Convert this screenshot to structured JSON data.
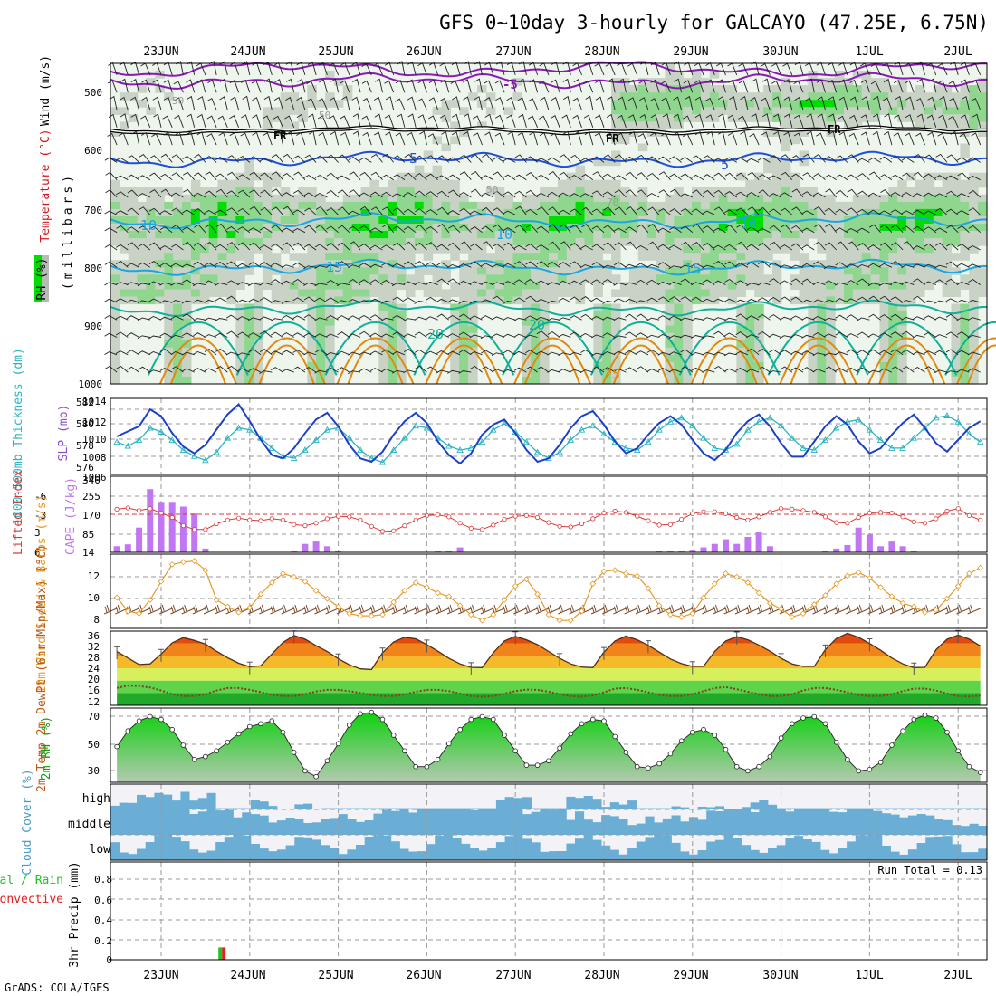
{
  "title": "GFS 0~10day 3-hourly for GALCAYO (47.25E, 6.75N)",
  "credit": "GrADS: COLA/IGES",
  "dates": [
    "23JUN",
    "24JUN",
    "25JUN",
    "26JUN",
    "27JUN",
    "28JUN",
    "29JUN",
    "30JUN",
    "1JUL",
    "2JUL"
  ],
  "colors": {
    "rh_light": "#eef5ec",
    "rh_mid": "#c8d3c6",
    "rh_high": "#8fd68f",
    "rh_sat": "#00dd00",
    "temp_purple": "#8a1ab8",
    "temp_black": "#000000",
    "temp_blue": "#1d4fd8",
    "temp_cyan": "#1aa6e0",
    "temp_teal": "#10b09a",
    "temp_orange": "#e08a10",
    "temp_red": "#d2161c",
    "thickness": "#2bb4c0",
    "slp": "#1c3fc8",
    "li": "#d83a3a",
    "cape": "#c277f2",
    "wind10": "#e79a28",
    "barb": "#7b4a2a",
    "cloud": "#6aaed6",
    "cloud_bg": "#f3f2f7",
    "rh2m": "#0fd00f",
    "precip_total": "#22c422",
    "precip_conv": "#e02020"
  },
  "chart_data": [
    {
      "type": "heatmap",
      "name": "upper_air",
      "ylabel": "(millibars)",
      "yticks": [
        "500",
        "600",
        "700",
        "800",
        "900",
        "1000"
      ],
      "ylim": [
        450,
        1000
      ],
      "legend_labels": {
        "wind": "Wind (m/s)",
        "temperature": "Temperature (°C)",
        "rh": "RH (%)"
      },
      "contour_labels": [
        "-5",
        "FR",
        "FR",
        "FR",
        "5",
        "5",
        "10",
        "10",
        "10",
        "15",
        "15",
        "20",
        "20",
        "25",
        "50",
        "50",
        "50",
        "70"
      ],
      "isotherms": [
        {
          "label": "-5",
          "level": 480,
          "color": "temp_purple"
        },
        {
          "label": "FR",
          "level": 565,
          "color": "temp_black"
        },
        {
          "label": "5",
          "level": 615,
          "color": "temp_blue"
        },
        {
          "label": "10",
          "level": 720,
          "color": "temp_cyan"
        },
        {
          "label": "15",
          "level": 800,
          "color": "temp_cyan"
        },
        {
          "label": "20",
          "level": 870,
          "color": "temp_teal"
        }
      ]
    },
    {
      "type": "line",
      "name": "thickness_slp",
      "left_label": "1000-500mb Thickness (dm)",
      "right_label": "SLP (mb)",
      "left_ticks": [
        "582",
        "580",
        "578",
        "576"
      ],
      "right_ticks": [
        "1014",
        "1012",
        "1010",
        "1008",
        "1006"
      ],
      "left_ylim": [
        575,
        582.5
      ],
      "right_ylim": [
        1005.5,
        1014.5
      ],
      "series": [
        {
          "name": "Thickness",
          "color": "thickness",
          "values": [
            581.6,
            582,
            581,
            579.6,
            578.2,
            577.8,
            578.4,
            579.6,
            579.2,
            578.4,
            577.4,
            576.8,
            576.4,
            577.2,
            578.6,
            579.6,
            579.4,
            578.6,
            577.6,
            576.8,
            576.6,
            577.4,
            578.4,
            579.4,
            579.6,
            578.6,
            577.4,
            576.6,
            576.2,
            577.4,
            578.6,
            579.8,
            579.6,
            578.6,
            577.8,
            577.4,
            577.6,
            578.2,
            579.4,
            580,
            579.2,
            578.2,
            577.2,
            576.6,
            577.2,
            578.4,
            579.4,
            579.8,
            579,
            578.2,
            577.6,
            577.4,
            578.2,
            579.4,
            580.2,
            580.6,
            579.8,
            578.6,
            577.6,
            577.4,
            578,
            579.4,
            580.2,
            580.6,
            579.8,
            578.6,
            577.6,
            577.4,
            578.4,
            579.6,
            580.2,
            580.4,
            579.4,
            578.4,
            577.6,
            577.6,
            578.6,
            579.6,
            580.6,
            580.8,
            580.2,
            579,
            578.2,
            578.6,
            579.6
          ]
        },
        {
          "name": "SLP",
          "color": "slp",
          "values": [
            1007,
            1006.4,
            1006.6,
            1008.4,
            1010,
            1010.6,
            1011.2,
            1013.2,
            1012.4,
            1010.4,
            1008.8,
            1008,
            1009,
            1010.8,
            1012.6,
            1013.8,
            1011.8,
            1009.6,
            1007.8,
            1007.4,
            1008.6,
            1010.4,
            1012,
            1012.8,
            1011.2,
            1009,
            1007.4,
            1007,
            1008.2,
            1010.2,
            1011.8,
            1012.8,
            1011.6,
            1009.4,
            1007.8,
            1006.8,
            1008,
            1010.2,
            1011.4,
            1012,
            1010.4,
            1008.4,
            1007,
            1007.4,
            1009,
            1011,
            1012.4,
            1013,
            1011.4,
            1009.4,
            1008,
            1008.6,
            1010.2,
            1011.6,
            1012.4,
            1011.4,
            1009.6,
            1008,
            1007.2,
            1008.4,
            1010.4,
            1011.8,
            1012.6,
            1011.2,
            1009.2,
            1007.6,
            1007.6,
            1009.4,
            1011.2,
            1012.4,
            1011.4,
            1009.4,
            1008,
            1008.6,
            1010.2,
            1011.6,
            1012.6,
            1011,
            1009.2,
            1008.2,
            1009.6,
            1011,
            1011.8,
            1011.6,
            1012
          ]
        }
      ]
    },
    {
      "type": "bar",
      "name": "li_cape",
      "left_label": "Lifted Index",
      "right_label": "CAPE (J/kg)",
      "left_ticks": [
        "-6",
        "-3",
        "0",
        "3",
        "6"
      ],
      "right_ticks": [
        "340",
        "255",
        "170",
        "85",
        "14"
      ],
      "left_ylim": [
        6,
        -6
      ],
      "right_ylim": [
        14,
        340
      ],
      "series": [
        {
          "name": "Lifted Index",
          "color": "li",
          "values": [
            2.6,
            3.1,
            2,
            0.4,
            -0.8,
            -1,
            -0.6,
            -0.9,
            -0.2,
            0.5,
            1.8,
            2.4,
            2.4,
            1.5,
            0.9,
            0.6,
            0.9,
            1,
            0.7,
            0.9,
            1.6,
            1.8,
            1.4,
            0.7,
            0.3,
            0.4,
            0.9,
            1.9,
            2.7,
            2.6,
            1.8,
            0.9,
            0.2,
            0.1,
            0.4,
            1.4,
            2.2,
            2.4,
            1.7,
            0.8,
            0.3,
            0.2,
            0.5,
            1.3,
            1.9,
            2,
            1.5,
            0.7,
            -0.2,
            -0.5,
            -0.3,
            0.3,
            1,
            1.7,
            1.6,
            0.8,
            -0.1,
            -0.4,
            -0.4,
            -0.1,
            0.5,
            0.9,
            0.4,
            -0.3,
            -0.9,
            -0.8,
            -0.6,
            -0.3,
            0.4,
            1.3,
            1.4,
            0.5,
            -0.2,
            -0.3,
            -0.2,
            0.4,
            1.2,
            1.4,
            0.7,
            -0.5,
            -0.9,
            0.2,
            0.9,
            1.2,
            1.3,
            0.7,
            0.1,
            1.2,
            2.1,
            2.7,
            2.2,
            1.5,
            0.9
          ]
        },
        {
          "name": "CAPE",
          "color": "cape",
          "values": [
            20,
            22,
            25,
            30,
            40,
            48,
            120,
            285,
            230,
            230,
            210,
            180,
            30,
            0,
            0,
            0,
            0,
            0,
            0,
            0,
            20,
            50,
            60,
            40,
            20,
            0,
            0,
            0,
            0,
            0,
            0,
            0,
            0,
            20,
            20,
            35,
            0,
            0,
            0,
            0,
            0,
            0,
            0,
            0,
            0,
            0,
            0,
            0,
            0,
            0,
            0,
            0,
            0,
            20,
            20,
            20,
            25,
            35,
            50,
            70,
            50,
            80,
            100,
            40,
            0,
            0,
            0,
            0,
            20,
            30,
            45,
            120,
            90,
            40,
            60,
            40,
            20,
            0,
            0,
            0,
            0,
            0,
            0,
            25,
            25,
            20,
            20,
            20,
            25,
            30,
            25,
            60,
            0,
            0,
            0,
            0
          ]
        }
      ]
    },
    {
      "type": "line",
      "name": "wind10m",
      "ylabel": "10m Wind Speed & Barbs (m/s)",
      "yticks": [
        "12",
        "10",
        "8"
      ],
      "ylim": [
        7.5,
        14
      ],
      "series": [
        {
          "name": "10m Wind Speed",
          "color": "wind10",
          "values": [
            10.8,
            9.5,
            10.5,
            10.9,
            10.2,
            9,
            8.8,
            10,
            11.6,
            13.1,
            13.3,
            13.4,
            12.6,
            10,
            9.4,
            8.9,
            9.3,
            10.5,
            11.5,
            12.3,
            12,
            11.6,
            10.8,
            10.1,
            9.4,
            8.8,
            8.6,
            8.6,
            8.7,
            9.8,
            10.8,
            11.5,
            11.1,
            10.6,
            10.3,
            9.5,
            8.7,
            8.2,
            8.7,
            10,
            11.2,
            11.8,
            10.5,
            8.7,
            8.2,
            8.2,
            9,
            11.4,
            12.5,
            12.6,
            12.3,
            12.1,
            11,
            9.5,
            8.7,
            8.5,
            8.8,
            10.2,
            11.4,
            12.3,
            12,
            11.5,
            10.6,
            9.7,
            9.2,
            8.5,
            8.8,
            9.6,
            10.4,
            11.4,
            12.1,
            12.4,
            11.9,
            11.1,
            10.3,
            9.7,
            9.4,
            8.9,
            9.1,
            10.1,
            11.2,
            12.3,
            12.8,
            12.4,
            11.5,
            10.6,
            9.8,
            8.8,
            9.3,
            10.6,
            11.6,
            12.4,
            12.1,
            11.2,
            10.3,
            9.6,
            8.9,
            9.4,
            10.2,
            10.8,
            11.9,
            12.3
          ]
        }
      ]
    },
    {
      "type": "area",
      "name": "temp2m",
      "ylabel": "2m Temp 2m DewPt (6hr Min/Max) (°C)",
      "yticks": [
        "36",
        "32",
        "28",
        "24",
        "20",
        "16",
        "12"
      ],
      "ylim": [
        12,
        36
      ],
      "series": [
        {
          "name": "2m Temp",
          "values": [
            35,
            34.6,
            33.2,
            31.6,
            29.4,
            27.3,
            25.2,
            25.4,
            28.6,
            32.2,
            33.9,
            33,
            31.8,
            29.5,
            27.4,
            25.6,
            24.5,
            24.8,
            28.6,
            32.3,
            34.6,
            33.4,
            31.3,
            29.4,
            27.1,
            25.1,
            23.8,
            23.6,
            29,
            32.5,
            34,
            33.5,
            31.6,
            29.5,
            27.2,
            25.4,
            24.3,
            24.2,
            29,
            32.8,
            34.3,
            33.2,
            31.6,
            29.4,
            27.2,
            25.4,
            24.4,
            24.2,
            29.2,
            32.8,
            34.4,
            33.2,
            31.4,
            29.2,
            27,
            25.5,
            24.6,
            24.6,
            29.4,
            32.8,
            34.2,
            33.2,
            31.5,
            29.5,
            27.2,
            25.4,
            24.6,
            24.6,
            30,
            33.6,
            35.3,
            34,
            32,
            29.8,
            27.3,
            25.4,
            24.2,
            24.3,
            30,
            33.4,
            34.7,
            33.4,
            31.2,
            29,
            26.8,
            25,
            24.4,
            24.6,
            29.8,
            33.2,
            33.4,
            32,
            30,
            28,
            26.2,
            24.7,
            24.3,
            28.2
          ]
        },
        {
          "name": "2m DewPt",
          "values": [
            13,
            12.8,
            14,
            15.8,
            17.6,
            18.4,
            18.2,
            17.8,
            16.8,
            15.6,
            15,
            15,
            15.6,
            16.8,
            17.6,
            17.6,
            17,
            16.3,
            15.4,
            15,
            15,
            15.6,
            16.5,
            17,
            17,
            16.6,
            16,
            15.4,
            15,
            15,
            15.6,
            16.4,
            17,
            17,
            16.6,
            15.8,
            15,
            14.8,
            15,
            15.8,
            16.6,
            17.1,
            17,
            16.4,
            15.6,
            15,
            14.8,
            15.2,
            16.2,
            17.4,
            17.6,
            17,
            16.2,
            15.4,
            15,
            15,
            15.6,
            16.6,
            17.6,
            17.9,
            17.2,
            16.4,
            15.6,
            15,
            15,
            15.6,
            16.8,
            17.6,
            17.6,
            17,
            16.2,
            15.4,
            15,
            15,
            15.6,
            16.6,
            17.4,
            17.4,
            16.8,
            15.8,
            15,
            14.8,
            15.2,
            16.2,
            17.2,
            17.4,
            17,
            16.2,
            15.5,
            15.1,
            15.2,
            16,
            17,
            17.2
          ]
        }
      ]
    },
    {
      "type": "area",
      "name": "rh2m",
      "ylabel": "2m RH (%)",
      "yticks": [
        "70",
        "50",
        "30"
      ],
      "ylim": [
        22,
        74
      ],
      "series": [
        {
          "name": "2m RH",
          "values": [
            27,
            26,
            27,
            36,
            47,
            58,
            65,
            68,
            66,
            59,
            48,
            38,
            40,
            44,
            50,
            56,
            61,
            63,
            65,
            57,
            43,
            30,
            26,
            37,
            49,
            62,
            70,
            71,
            66,
            55,
            44,
            33,
            33,
            38,
            49,
            59,
            66,
            68,
            66,
            55,
            44,
            34,
            34,
            37,
            46,
            56,
            63,
            66,
            65,
            54,
            43,
            33,
            32,
            35,
            42,
            51,
            57,
            59,
            55,
            45,
            33,
            30,
            33,
            40,
            53,
            63,
            67,
            68,
            63,
            50,
            38,
            30,
            31,
            36,
            48,
            58,
            66,
            69,
            67,
            57,
            44,
            33,
            29,
            31,
            43,
            56,
            66,
            70,
            65,
            54,
            40,
            30,
            33,
            40,
            54,
            65,
            73,
            74,
            68,
            55,
            41,
            35,
            43,
            58,
            65,
            48
          ]
        }
      ]
    },
    {
      "type": "heatmap",
      "name": "cloud_cover",
      "ylabel": "Cloud Cover (%)",
      "rows": [
        "high",
        "middle",
        "low"
      ]
    },
    {
      "type": "bar",
      "name": "precip",
      "ylabel": "3hr Precip (mm)",
      "legend": [
        "Total / Rain",
        "Convective"
      ],
      "yticks": [
        "0.8",
        "0.6",
        "0.4",
        "0.2",
        "0"
      ],
      "ylim": [
        0,
        0.95
      ],
      "annotation": "Run Total = 0.13",
      "series": [
        {
          "name": "Total",
          "color": "precip_total",
          "bins": [
            {
              "t": 13.5,
              "value": 0.12
            }
          ]
        },
        {
          "name": "Convective",
          "color": "precip_conv",
          "bins": [
            {
              "t": 13.5,
              "value": 0.12
            }
          ]
        }
      ]
    }
  ]
}
